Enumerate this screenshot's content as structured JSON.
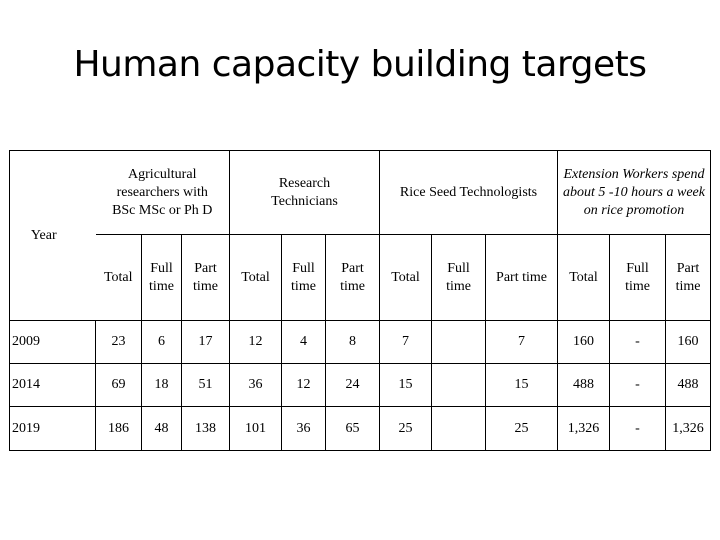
{
  "title": "Human capacity building targets",
  "table": {
    "year_label": "Year",
    "groups": {
      "agricultural": "Agricultural researchers with BSc MSc or Ph D",
      "technicians": "Research Technicians",
      "rice": "Rice Seed Technologists",
      "extension": "Extension Workers spend about 5 -10 hours a week on rice promotion"
    },
    "sub": {
      "total": "Total",
      "full_time": "Full time",
      "part_time": "Part time",
      "part_time_inline": "Part time"
    },
    "rows": [
      {
        "year": "2009",
        "a_total": "23",
        "a_full": "6",
        "a_part": "17",
        "t_total": "12",
        "t_full": "4",
        "t_part": "8",
        "r_total": "7",
        "r_full": "",
        "r_part": "7",
        "e_total": "160",
        "e_full": "-",
        "e_part": "160"
      },
      {
        "year": "2014",
        "a_total": "69",
        "a_full": "18",
        "a_part": "51",
        "t_total": "36",
        "t_full": "12",
        "t_part": "24",
        "r_total": "15",
        "r_full": "",
        "r_part": "15",
        "e_total": "488",
        "e_full": "-",
        "e_part": "488"
      },
      {
        "year": "2019",
        "a_total": "186",
        "a_full": "48",
        "a_part": "138",
        "t_total": "101",
        "t_full": "36",
        "t_part": "65",
        "r_total": "25",
        "r_full": "",
        "r_part": "25",
        "e_total": "1,326",
        "e_full": "-",
        "e_part": "1,326"
      }
    ]
  }
}
